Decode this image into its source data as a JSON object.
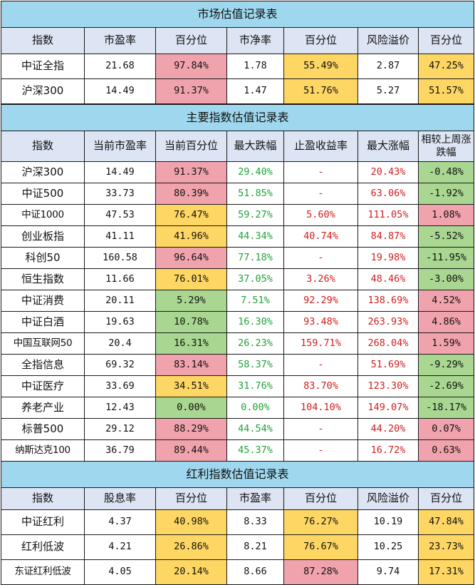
{
  "colors": {
    "title_bg": "#9fd8ee",
    "header_bg": "#dde4f3",
    "high_percentile_bg": "#f0a3ad",
    "mid_percentile_bg": "#fdd663",
    "low_percentile_bg": "#a9d690",
    "drawdown_text": "#1ea538",
    "gain_text": "#d51c1c"
  },
  "market": {
    "title": "市场估值记录表",
    "headers": [
      "指数",
      "市盈率",
      "百分位",
      "市净率",
      "百分位",
      "风险溢价",
      "百分位"
    ],
    "rows": [
      {
        "name": "中证全指",
        "pe": "21.68",
        "pe_pct": "97.84%",
        "pb": "1.78",
        "pb_pct": "55.49%",
        "risk": "2.87",
        "risk_pct": "47.25%"
      },
      {
        "name": "沪深300",
        "pe": "14.49",
        "pe_pct": "91.37%",
        "pb": "1.47",
        "pb_pct": "51.76%",
        "risk": "5.27",
        "risk_pct": "51.57%"
      }
    ]
  },
  "major": {
    "title": "主要指数估值记录表",
    "headers": [
      "指数",
      "当前市盈率",
      "当前百分位",
      "最大跌幅",
      "止盈收益率",
      "最大涨幅",
      "相较上周涨跌幅"
    ],
    "rows": [
      {
        "name": "沪深300",
        "pe": "14.49",
        "pct": "91.37%",
        "max_drop": "29.40%",
        "tp": "-",
        "max_gain": "20.43%",
        "weekly": "-0.48%"
      },
      {
        "name": "中证500",
        "pe": "33.73",
        "pct": "80.39%",
        "max_drop": "51.85%",
        "tp": "-",
        "max_gain": "63.06%",
        "weekly": "-1.92%"
      },
      {
        "name": "中证1000",
        "pe": "47.53",
        "pct": "76.47%",
        "max_drop": "59.27%",
        "tp": "5.60%",
        "max_gain": "111.05%",
        "weekly": "1.08%"
      },
      {
        "name": "创业板指",
        "pe": "41.11",
        "pct": "41.96%",
        "max_drop": "44.34%",
        "tp": "40.74%",
        "max_gain": "84.87%",
        "weekly": "-5.52%"
      },
      {
        "name": "科创50",
        "pe": "160.58",
        "pct": "96.64%",
        "max_drop": "77.18%",
        "tp": "-",
        "max_gain": "19.98%",
        "weekly": "-11.95%"
      },
      {
        "name": "恒生指数",
        "pe": "11.66",
        "pct": "76.01%",
        "max_drop": "37.05%",
        "tp": "3.26%",
        "max_gain": "48.46%",
        "weekly": "-3.00%"
      },
      {
        "name": "中证消费",
        "pe": "20.11",
        "pct": "5.29%",
        "max_drop": "7.51%",
        "tp": "92.29%",
        "max_gain": "138.69%",
        "weekly": "4.52%"
      },
      {
        "name": "中证白酒",
        "pe": "19.63",
        "pct": "10.78%",
        "max_drop": "16.30%",
        "tp": "93.48%",
        "max_gain": "263.93%",
        "weekly": "4.86%"
      },
      {
        "name": "中国互联网50",
        "pe": "20.4",
        "pct": "16.31%",
        "max_drop": "26.23%",
        "tp": "159.71%",
        "max_gain": "268.04%",
        "weekly": "1.59%"
      },
      {
        "name": "全指信息",
        "pe": "69.32",
        "pct": "83.14%",
        "max_drop": "58.37%",
        "tp": "-",
        "max_gain": "51.69%",
        "weekly": "-9.29%"
      },
      {
        "name": "中证医疗",
        "pe": "33.69",
        "pct": "34.51%",
        "max_drop": "31.76%",
        "tp": "83.70%",
        "max_gain": "123.30%",
        "weekly": "-2.69%"
      },
      {
        "name": "养老产业",
        "pe": "12.43",
        "pct": "0.00%",
        "max_drop": "0.00%",
        "tp": "104.10%",
        "max_gain": "149.07%",
        "weekly": "-18.17%"
      },
      {
        "name": "标普500",
        "pe": "29.12",
        "pct": "88.29%",
        "max_drop": "44.54%",
        "tp": "-",
        "max_gain": "44.20%",
        "weekly": "0.07%"
      },
      {
        "name": "纳斯达克100",
        "pe": "36.79",
        "pct": "89.44%",
        "max_drop": "45.37%",
        "tp": "-",
        "max_gain": "16.72%",
        "weekly": "0.63%"
      }
    ]
  },
  "dividend": {
    "title": "红利指数估值记录表",
    "headers": [
      "指数",
      "股息率",
      "百分位",
      "市盈率",
      "百分位",
      "风险溢价",
      "百分位"
    ],
    "rows": [
      {
        "name": "中证红利",
        "dy": "4.37",
        "dy_pct": "40.98%",
        "pe": "8.33",
        "pe_pct": "76.27%",
        "risk": "10.19",
        "risk_pct": "47.84%"
      },
      {
        "name": "红利低波",
        "dy": "4.21",
        "dy_pct": "26.86%",
        "pe": "8.21",
        "pe_pct": "76.67%",
        "risk": "10.25",
        "risk_pct": "23.73%"
      },
      {
        "name": "东证红利低波",
        "dy": "4.05",
        "dy_pct": "20.14%",
        "pe": "8.66",
        "pe_pct": "87.28%",
        "risk": "9.74",
        "risk_pct": "17.31%"
      }
    ]
  }
}
